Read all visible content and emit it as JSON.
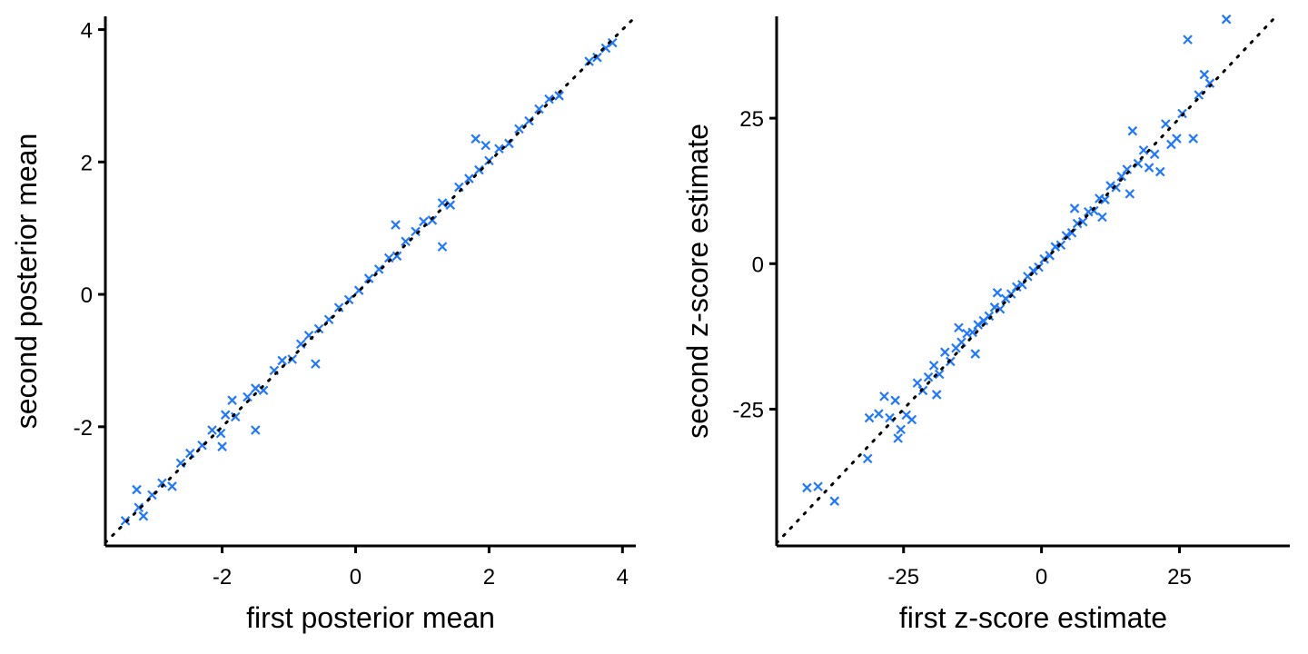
{
  "chart_data": [
    {
      "type": "scatter",
      "title": "",
      "xlabel": "first posterior mean",
      "ylabel": "second posterior mean",
      "xlim": [
        -3.75,
        4.2
      ],
      "ylim": [
        -3.8,
        4.2
      ],
      "xticks": [
        -2,
        0,
        2,
        4
      ],
      "yticks": [
        -2,
        0,
        2,
        4
      ],
      "xtick_labels": [
        "-2",
        "0",
        "2",
        "4"
      ],
      "ytick_labels": [
        "-2",
        "0",
        "2",
        "4"
      ],
      "reference_line": "y = x (dotted)",
      "marker": "x",
      "color": "#1f78ff",
      "grid": false,
      "legend": "none",
      "points": [
        [
          -3.45,
          -3.42
        ],
        [
          -3.25,
          -3.22
        ],
        [
          -3.18,
          -3.35
        ],
        [
          -3.05,
          -3.03
        ],
        [
          -3.28,
          -2.95
        ],
        [
          -2.9,
          -2.85
        ],
        [
          -2.75,
          -2.9
        ],
        [
          -2.62,
          -2.55
        ],
        [
          -2.48,
          -2.4
        ],
        [
          -2.3,
          -2.28
        ],
        [
          -2.15,
          -2.05
        ],
        [
          -2.02,
          -2.1
        ],
        [
          -1.95,
          -1.82
        ],
        [
          -1.8,
          -1.85
        ],
        [
          -1.62,
          -1.55
        ],
        [
          -1.5,
          -1.42
        ],
        [
          -1.38,
          -1.45
        ],
        [
          -1.22,
          -1.15
        ],
        [
          -1.1,
          -1.0
        ],
        [
          -0.95,
          -0.98
        ],
        [
          -0.82,
          -0.75
        ],
        [
          -0.7,
          -0.62
        ],
        [
          -0.55,
          -0.52
        ],
        [
          -0.4,
          -0.38
        ],
        [
          -0.25,
          -0.2
        ],
        [
          -0.1,
          -0.08
        ],
        [
          0.05,
          0.06
        ],
        [
          0.2,
          0.24
        ],
        [
          0.35,
          0.38
        ],
        [
          0.5,
          0.55
        ],
        [
          0.62,
          0.58
        ],
        [
          0.75,
          0.8
        ],
        [
          0.9,
          0.95
        ],
        [
          1.02,
          1.1
        ],
        [
          1.15,
          1.12
        ],
        [
          1.3,
          1.38
        ],
        [
          1.42,
          1.35
        ],
        [
          1.55,
          1.62
        ],
        [
          1.7,
          1.75
        ],
        [
          1.85,
          1.88
        ],
        [
          2.0,
          2.02
        ],
        [
          2.15,
          2.2
        ],
        [
          2.3,
          2.28
        ],
        [
          2.45,
          2.5
        ],
        [
          2.6,
          2.62
        ],
        [
          2.75,
          2.8
        ],
        [
          2.9,
          2.95
        ],
        [
          3.05,
          3.0
        ],
        [
          3.5,
          3.52
        ],
        [
          3.62,
          3.58
        ],
        [
          3.75,
          3.72
        ],
        [
          3.85,
          3.8
        ],
        [
          1.8,
          2.35
        ],
        [
          -1.5,
          -2.05
        ],
        [
          1.3,
          0.72
        ],
        [
          -1.85,
          -1.6
        ],
        [
          1.95,
          2.25
        ],
        [
          -2.0,
          -2.3
        ],
        [
          -0.6,
          -1.05
        ],
        [
          0.6,
          1.05
        ]
      ]
    },
    {
      "type": "scatter",
      "title": "",
      "xlabel": "first z-score estimate",
      "ylabel": "second z-score estimate",
      "xlim": [
        -48,
        45
      ],
      "ylim": [
        -48.5,
        42.5
      ],
      "xticks": [
        -25,
        0,
        25
      ],
      "yticks": [
        -25,
        0,
        25
      ],
      "xtick_labels": [
        "-25",
        "0",
        "25"
      ],
      "ytick_labels": [
        "-25",
        "0",
        "25"
      ],
      "reference_line": "y = x (dotted)",
      "marker": "x",
      "color": "#1f78ff",
      "grid": false,
      "legend": "none",
      "points": [
        [
          -42.5,
          -38.5
        ],
        [
          -40.5,
          -38.3
        ],
        [
          -37.5,
          -40.8
        ],
        [
          -31.5,
          -33.5
        ],
        [
          -31.2,
          -26.5
        ],
        [
          -29.5,
          -25.8
        ],
        [
          -28.5,
          -22.8
        ],
        [
          -27.5,
          -26.5
        ],
        [
          -26.5,
          -23.5
        ],
        [
          -25.5,
          -28.5
        ],
        [
          -24.5,
          -26.0
        ],
        [
          -23.5,
          -26.8
        ],
        [
          -22.5,
          -20.5
        ],
        [
          -21.5,
          -21.8
        ],
        [
          -20.5,
          -19.5
        ],
        [
          -19.5,
          -17.5
        ],
        [
          -18.5,
          -19.0
        ],
        [
          -17.5,
          -15.2
        ],
        [
          -16.5,
          -16.8
        ],
        [
          -15.5,
          -14.5
        ],
        [
          -14.5,
          -13.5
        ],
        [
          -13.5,
          -12.0
        ],
        [
          -12.5,
          -11.8
        ],
        [
          -11.5,
          -10.5
        ],
        [
          -10.5,
          -9.8
        ],
        [
          -9.5,
          -9.0
        ],
        [
          -8.5,
          -7.5
        ],
        [
          -7.5,
          -7.8
        ],
        [
          -6.5,
          -6.0
        ],
        [
          -5.5,
          -5.2
        ],
        [
          -4.5,
          -4.0
        ],
        [
          -3.5,
          -3.6
        ],
        [
          -2.5,
          -2.2
        ],
        [
          -1.5,
          -1.2
        ],
        [
          -0.5,
          -0.6
        ],
        [
          0.5,
          0.8
        ],
        [
          1.5,
          1.4
        ],
        [
          2.5,
          2.9
        ],
        [
          3.5,
          3.2
        ],
        [
          4.5,
          4.8
        ],
        [
          5.5,
          5.3
        ],
        [
          6.5,
          6.9
        ],
        [
          7.5,
          7.2
        ],
        [
          8.5,
          8.9
        ],
        [
          9.5,
          9.1
        ],
        [
          10.5,
          11.2
        ],
        [
          11.5,
          11.0
        ],
        [
          12.5,
          13.4
        ],
        [
          13.5,
          13.1
        ],
        [
          14.5,
          15.0
        ],
        [
          15.5,
          16.2
        ],
        [
          16.5,
          22.8
        ],
        [
          17.5,
          17.2
        ],
        [
          18.5,
          19.5
        ],
        [
          19.5,
          16.5
        ],
        [
          20.5,
          18.8
        ],
        [
          21.5,
          15.8
        ],
        [
          22.5,
          24.0
        ],
        [
          23.5,
          20.5
        ],
        [
          24.5,
          21.5
        ],
        [
          25.5,
          25.8
        ],
        [
          26.5,
          38.5
        ],
        [
          27.5,
          21.5
        ],
        [
          28.5,
          29.0
        ],
        [
          29.5,
          32.5
        ],
        [
          30.5,
          31.0
        ],
        [
          33.5,
          42.0
        ],
        [
          -19.0,
          -22.5
        ],
        [
          -12.0,
          -15.5
        ],
        [
          -8.0,
          -5.0
        ],
        [
          6.0,
          9.5
        ],
        [
          11.0,
          8.0
        ],
        [
          -15.0,
          -11.0
        ],
        [
          16.0,
          12.0
        ],
        [
          -26.0,
          -30.0
        ]
      ]
    }
  ]
}
